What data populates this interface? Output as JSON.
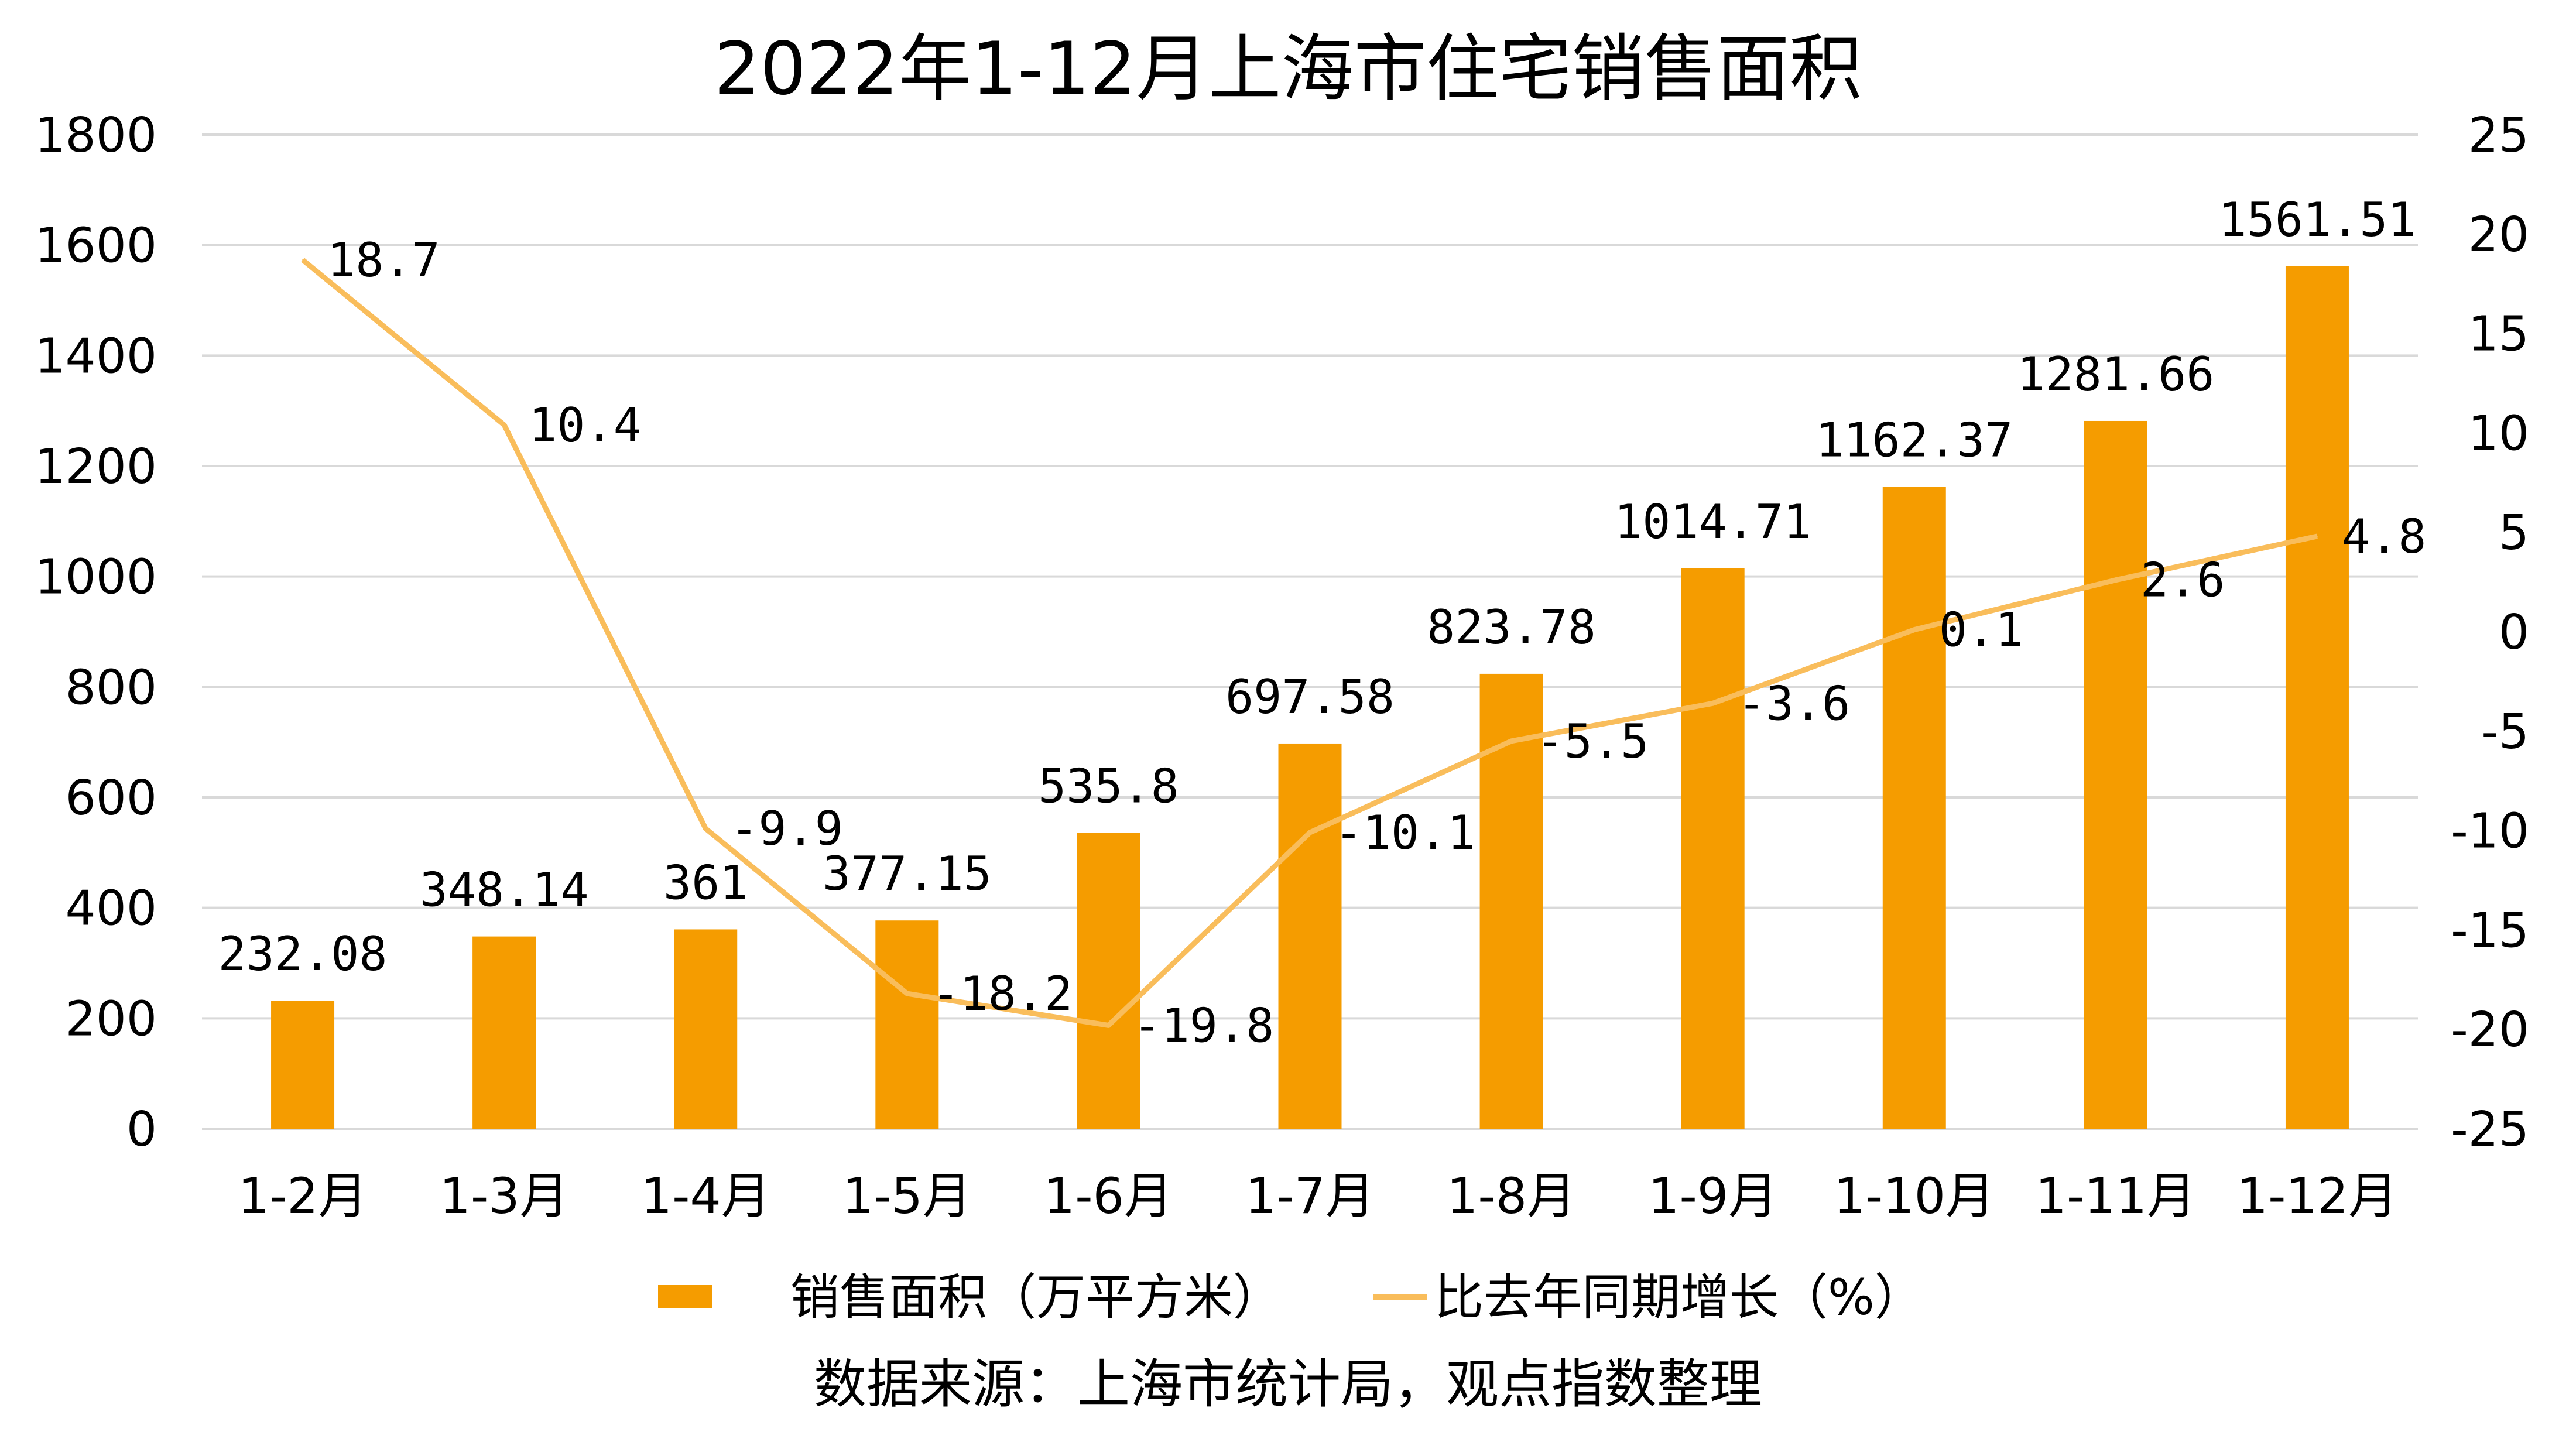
{
  "chart_data": {
    "type": "bar+line",
    "title": "2022年1-12月上海市住宅销售面积",
    "categories": [
      "1-2月",
      "1-3月",
      "1-4月",
      "1-5月",
      "1-6月",
      "1-7月",
      "1-8月",
      "1-9月",
      "1-10月",
      "1-11月",
      "1-12月"
    ],
    "series": [
      {
        "name": "销售面积（万平方米）",
        "type": "bar",
        "axis": "left",
        "color": "#f59c00",
        "values": [
          232.08,
          348.14,
          361,
          377.15,
          535.8,
          697.58,
          823.78,
          1014.71,
          1162.37,
          1281.66,
          1561.51
        ],
        "labels": [
          "232.08",
          "348.14",
          "361",
          "377.15",
          "535.8",
          "697.58",
          "823.78",
          "1014.71",
          "1162.37",
          "1281.66",
          "1561.51"
        ]
      },
      {
        "name": "比去年同期增长（%）",
        "type": "line",
        "axis": "right",
        "color": "#f9bd5b",
        "values": [
          18.7,
          10.4,
          -9.9,
          -18.2,
          -19.8,
          -10.1,
          -5.5,
          -3.6,
          0.1,
          2.6,
          4.8
        ],
        "labels": [
          "18.7",
          "10.4",
          "-9.9",
          "-18.2",
          "-19.8",
          "-10.1",
          "-5.5",
          "-3.6",
          "0.1",
          "2.6",
          "4.8"
        ]
      }
    ],
    "y_left": {
      "min": 0,
      "max": 1800,
      "ticks": [
        0,
        200,
        400,
        600,
        800,
        1000,
        1200,
        1400,
        1600,
        1800
      ]
    },
    "y_right": {
      "min": -25,
      "max": 25,
      "ticks": [
        -25,
        -20,
        -15,
        -10,
        -5,
        0,
        5,
        10,
        15,
        20,
        25
      ]
    },
    "grid": true,
    "legend_position": "bottom",
    "source": "数据来源：上海市统计局，观点指数整理"
  }
}
